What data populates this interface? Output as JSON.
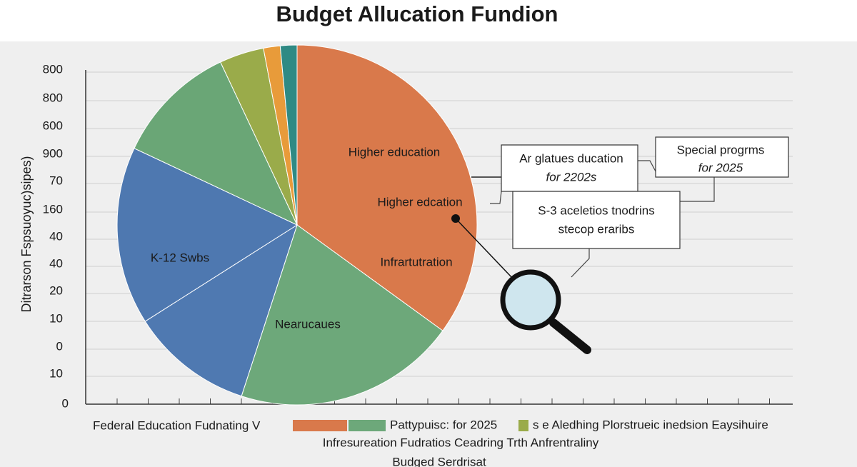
{
  "chart_data": {
    "type": "pie",
    "title": "Budget Allucation Fundion",
    "y_axis_label": "Ditrarson Fspsuoyuc)sipes)",
    "axis_labels": [
      "800",
      "800",
      "600",
      "900",
      "70",
      "160",
      "40",
      "40",
      "20",
      "10",
      "0",
      "10",
      "0"
    ],
    "categories": [
      "Higher education",
      "Nearucaues",
      null,
      "K-12 Swbs",
      null,
      null,
      null,
      null
    ],
    "values": [
      35,
      20,
      11,
      16,
      11,
      4,
      1.5,
      1.5
    ],
    "colors": [
      "#d9794b",
      "#6da87a",
      "#4f79b1",
      "#4e78b0",
      "#6aa676",
      "#9aab4a",
      "#e89b3a",
      "#2f8a84"
    ],
    "annotations": [
      "Higher edcation",
      "Infrartutration"
    ],
    "callouts": [
      {
        "lines": [
          "Ar glatues ducation",
          "for 2202s"
        ]
      },
      {
        "lines": [
          "Special progrms",
          "for 2025"
        ]
      },
      {
        "lines": [
          "S-3 aceletios tnodrins",
          "stecop eraribs"
        ]
      }
    ],
    "legend": [
      "Federal Education Fudnating  V",
      "Pattypuisc: for 2025",
      "s e Aledhing Plorstrueic inedsion Eaysihuire",
      "Infresureation Fudratios Ceadring Trth Anfrentraliny",
      "Budged Serdrisat"
    ]
  }
}
